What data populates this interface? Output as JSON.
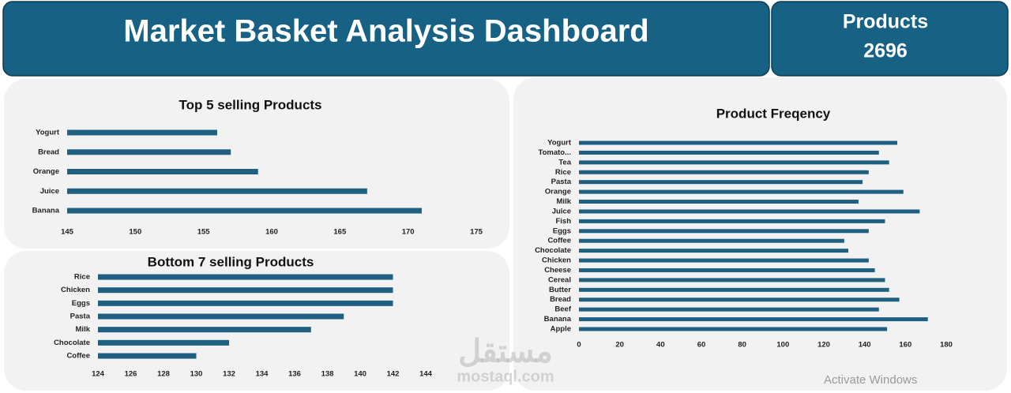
{
  "header": {
    "title": "Market Basket Analysis Dashboard",
    "kpi_label": "Products",
    "kpi_value": 2696
  },
  "chart_data": [
    {
      "type": "hbar",
      "title": "Top 5 selling Products",
      "color": "#1f5f80",
      "categories": [
        "Yogurt",
        "Bread",
        "Orange",
        "Juice",
        "Banana"
      ],
      "values": [
        156,
        157,
        159,
        167,
        171
      ],
      "xlim": [
        145,
        175
      ],
      "xticks": [
        145,
        150,
        155,
        160,
        165,
        170,
        175
      ]
    },
    {
      "type": "hbar",
      "title": "Bottom 7 selling Products",
      "color": "#1f5f80",
      "categories": [
        "Rice",
        "Chicken",
        "Eggs",
        "Pasta",
        "Milk",
        "Chocolate",
        "Coffee"
      ],
      "values": [
        142,
        142,
        142,
        139,
        137,
        132,
        130
      ],
      "xlim": [
        124,
        144
      ],
      "xticks": [
        124,
        126,
        128,
        130,
        132,
        134,
        136,
        138,
        140,
        142,
        144
      ]
    },
    {
      "type": "hbar",
      "title": "Product Freqency",
      "color": "#1f5f80",
      "categories": [
        "Yogurt",
        "Tomato...",
        "Tea",
        "Rice",
        "Pasta",
        "Orange",
        "Milk",
        "Juice",
        "Fish",
        "Eggs",
        "Coffee",
        "Chocolate",
        "Chicken",
        "Cheese",
        "Cereal",
        "Butter",
        "Bread",
        "Beef",
        "Banana",
        "Apple"
      ],
      "values": [
        156,
        147,
        152,
        142,
        139,
        159,
        137,
        167,
        150,
        142,
        130,
        132,
        142,
        145,
        150,
        152,
        157,
        147,
        171,
        151
      ],
      "xlim": [
        0,
        180
      ],
      "xticks": [
        0,
        20,
        40,
        60,
        80,
        100,
        120,
        140,
        160,
        180
      ]
    }
  ],
  "watermarks": [
    "مستقل",
    "mostaql.com",
    "Activate Windows"
  ]
}
